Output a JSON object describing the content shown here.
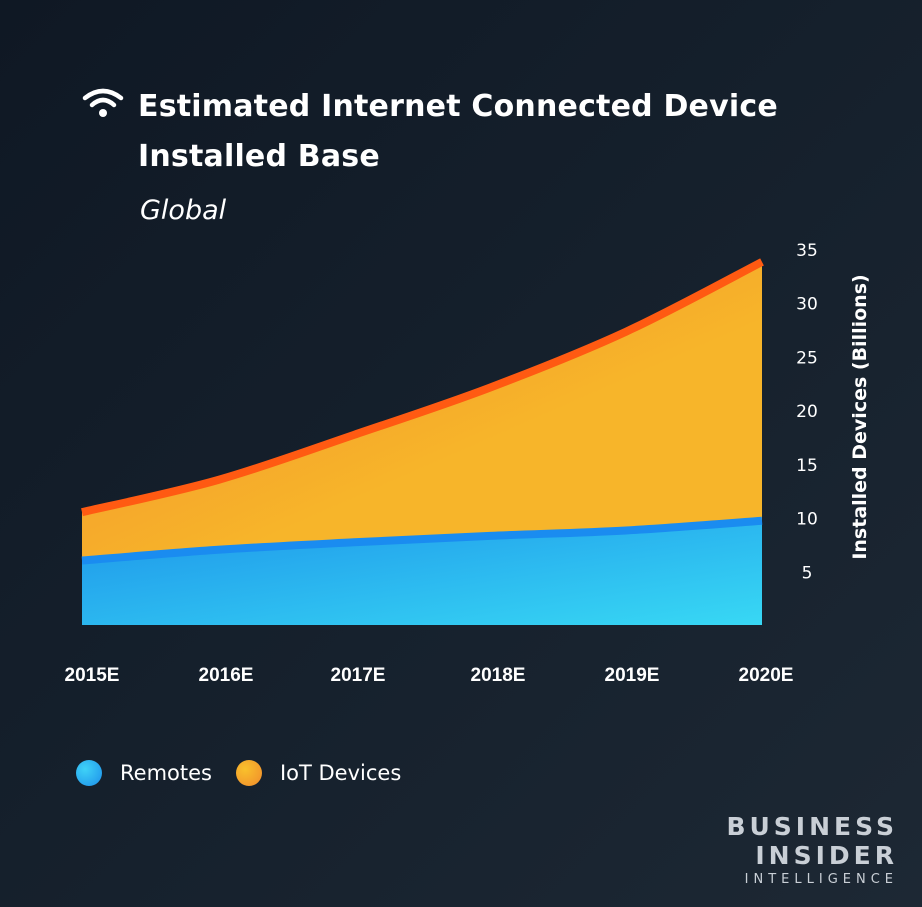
{
  "header": {
    "icon": "wifi-icon",
    "title": "Estimated Internet Connected Device Installed Base",
    "subtitle": "Global"
  },
  "chart_data": {
    "type": "area",
    "stacked": true,
    "categories": [
      "2015E",
      "2016E",
      "2017E",
      "2018E",
      "2019E",
      "2020E"
    ],
    "series": [
      {
        "name": "Remotes",
        "values": [
          6,
          7,
          7.7,
          8.3,
          8.8,
          9.7
        ],
        "color": "#29b6f6"
      },
      {
        "name": "IoT Devices",
        "values": [
          4.5,
          6.5,
          10,
          13.8,
          18.5,
          24.1
        ],
        "color": "#f7a928"
      }
    ],
    "ylabel": "Installed Devices (Billions)",
    "ylim": [
      0,
      35
    ],
    "yticks": [
      5,
      10,
      15,
      20,
      25,
      30,
      35
    ],
    "y_axis_side": "right",
    "grid": false,
    "legend_position": "bottom-left"
  },
  "legend": {
    "items": [
      {
        "label": "Remotes",
        "color": "#29b6f6"
      },
      {
        "label": "IoT Devices",
        "color": "#f7a928"
      }
    ]
  },
  "logo": {
    "line1": "BUSINESS",
    "line2": "INSIDER",
    "line3": "INTELLIGENCE"
  }
}
